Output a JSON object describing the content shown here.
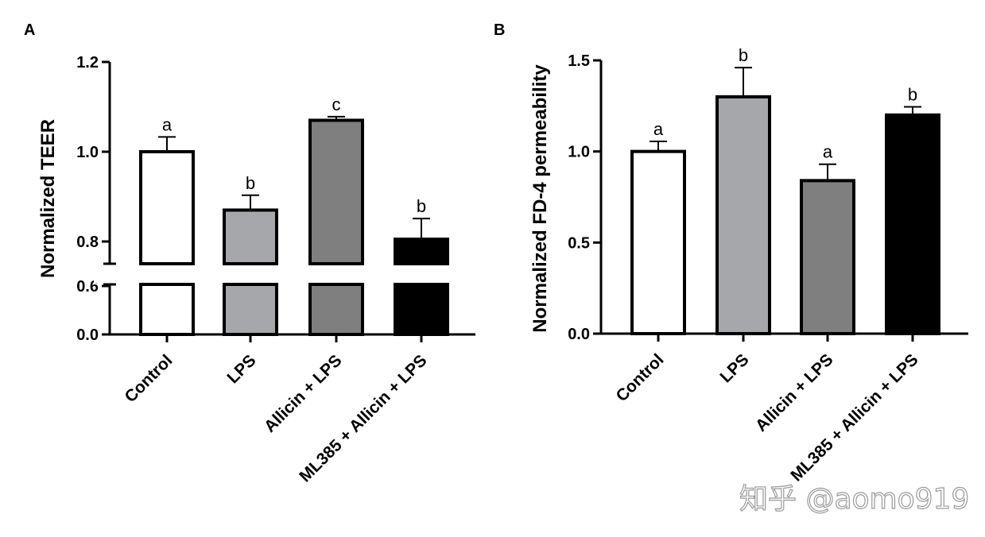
{
  "watermark": "知乎 @aomo919",
  "colors": {
    "Control": "#ffffff",
    "LPS": "#a6a7aa",
    "Allicin + LPS": "#7f7f7f",
    "ML385 + Allicin + LPS": "#000000"
  },
  "chart_data": [
    {
      "panel": "A",
      "type": "bar",
      "title": "",
      "xlabel": "",
      "ylabel": "Normalized TEER",
      "categories": [
        "Control",
        "LPS",
        "Allicin + LPS",
        "ML385 + Allicin + LPS"
      ],
      "values": [
        1.0,
        0.87,
        1.07,
        0.805
      ],
      "errors": [
        0.033,
        0.033,
        0.008,
        0.046
      ],
      "significance": [
        "a",
        "b",
        "c",
        "b"
      ],
      "ylim": [
        0,
        1.2
      ],
      "axis_break": [
        0.6,
        0.8
      ],
      "yticks": [
        "0.0",
        "0.6",
        "0.8",
        "1.0",
        "1.2"
      ]
    },
    {
      "panel": "B",
      "type": "bar",
      "title": "",
      "xlabel": "",
      "ylabel": "Normalized FD-4 permeability",
      "categories": [
        "Control",
        "LPS",
        "Allicin + LPS",
        "ML385 + Allicin + LPS"
      ],
      "values": [
        1.0,
        1.3,
        0.84,
        1.2
      ],
      "errors": [
        0.055,
        0.16,
        0.09,
        0.045
      ],
      "significance": [
        "a",
        "b",
        "a",
        "b"
      ],
      "ylim": [
        0,
        1.5
      ],
      "yticks": [
        "0.0",
        "0.5",
        "1.0",
        "1.5"
      ]
    }
  ]
}
